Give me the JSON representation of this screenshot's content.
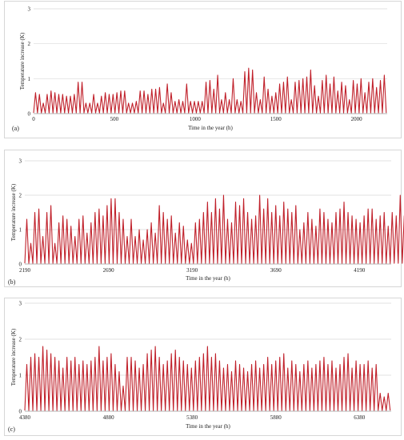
{
  "chart_data": [
    {
      "type": "line",
      "panel_label": "(a)",
      "xlabel": "Time in the year (h)",
      "ylabel": "Temperature increase (K)",
      "xlim": [
        0,
        2190
      ],
      "ylim": [
        0,
        3
      ],
      "x_ticks": [
        0,
        500,
        1000,
        1500,
        2000
      ],
      "y_ticks": [
        0,
        1,
        2,
        3
      ],
      "grid": true,
      "series": [
        {
          "color": "#c0202a",
          "x_start": 0,
          "x_step": 24,
          "daily_peaks": [
            0.6,
            0.55,
            0.3,
            0.55,
            0.65,
            0.6,
            0.55,
            0.55,
            0.5,
            0.5,
            0.55,
            0.9,
            0.9,
            0.3,
            0.3,
            0.55,
            0.3,
            0.5,
            0.6,
            0.55,
            0.55,
            0.6,
            0.65,
            0.65,
            0.3,
            0.3,
            0.35,
            0.65,
            0.65,
            0.55,
            0.7,
            0.7,
            0.75,
            0.3,
            0.85,
            0.6,
            0.35,
            0.4,
            0.35,
            0.85,
            0.35,
            0.35,
            0.35,
            0.35,
            0.9,
            0.95,
            0.7,
            1.1,
            0.4,
            0.6,
            0.4,
            1.0,
            0.4,
            0.35,
            1.2,
            1.3,
            1.25,
            0.6,
            0.4,
            1.05,
            0.7,
            0.5,
            0.6,
            0.85,
            0.9,
            1.05,
            0.4,
            0.9,
            0.95,
            1.0,
            1.05,
            1.25,
            0.8,
            0.5,
            0.95,
            1.1,
            0.85,
            1.05,
            0.65,
            0.9,
            0.8,
            0.4,
            0.95,
            0.85,
            1.0,
            0.6,
            0.9,
            1.0,
            0.75,
            0.95,
            1.1
          ]
        }
      ]
    },
    {
      "type": "line",
      "panel_label": "(b)",
      "xlabel": "Time in the year (h)",
      "ylabel": "Temperature increase (K)",
      "xlim": [
        2190,
        4380
      ],
      "ylim": [
        0,
        3
      ],
      "x_ticks": [
        2190,
        2690,
        3190,
        3690,
        4190
      ],
      "y_ticks": [
        0,
        1,
        2,
        3
      ],
      "grid": true,
      "series": [
        {
          "color": "#c0202a",
          "x_start": 2190,
          "x_step": 24,
          "daily_peaks": [
            1.3,
            0.6,
            1.5,
            1.6,
            0.8,
            1.5,
            1.7,
            0.6,
            1.2,
            1.4,
            1.3,
            1.1,
            0.8,
            1.3,
            1.4,
            0.9,
            1.2,
            1.5,
            1.6,
            1.4,
            1.7,
            1.9,
            1.9,
            1.5,
            1.3,
            0.8,
            1.3,
            0.8,
            1.0,
            0.7,
            1.0,
            1.2,
            0.9,
            1.7,
            1.5,
            1.3,
            1.4,
            0.9,
            1.2,
            1.1,
            0.7,
            0.6,
            1.2,
            1.3,
            1.5,
            1.8,
            1.5,
            1.9,
            1.6,
            2.0,
            1.3,
            1.2,
            1.8,
            1.7,
            1.9,
            1.5,
            1.3,
            1.4,
            2.0,
            1.6,
            1.9,
            1.5,
            1.7,
            1.4,
            1.8,
            1.6,
            1.5,
            1.7,
            1.0,
            1.2,
            1.5,
            1.3,
            1.1,
            1.6,
            1.5,
            1.3,
            1.2,
            1.5,
            1.6,
            1.8,
            1.5,
            1.4,
            1.3,
            1.2,
            1.4,
            1.6,
            1.6,
            1.3,
            1.4,
            1.5,
            1.1,
            1.5,
            1.4,
            2.0,
            1.4
          ]
        }
      ]
    },
    {
      "type": "line",
      "panel_label": "(c)",
      "xlabel": "Time in the year (h)",
      "ylabel": "Temperature increase (K)",
      "xlim": [
        4380,
        6570
      ],
      "ylim": [
        0,
        3
      ],
      "x_ticks": [
        4380,
        4880,
        5380,
        5880,
        6380
      ],
      "y_ticks": [
        0,
        1,
        2,
        3
      ],
      "grid": true,
      "series": [
        {
          "color": "#c0202a",
          "x_start": 4380,
          "x_step": 24,
          "daily_peaks": [
            1.3,
            1.5,
            1.6,
            1.5,
            1.8,
            1.7,
            1.6,
            1.5,
            1.4,
            1.2,
            1.5,
            1.4,
            1.5,
            1.3,
            1.4,
            1.3,
            1.4,
            1.5,
            1.8,
            1.4,
            1.5,
            1.6,
            1.3,
            1.1,
            0.7,
            1.5,
            1.5,
            1.4,
            1.2,
            1.3,
            1.6,
            1.7,
            1.8,
            1.5,
            1.3,
            1.4,
            1.6,
            1.7,
            1.5,
            1.4,
            1.3,
            1.2,
            1.4,
            1.5,
            1.6,
            1.8,
            1.5,
            1.6,
            1.4,
            1.2,
            1.3,
            1.1,
            1.4,
            1.3,
            1.2,
            1.1,
            1.3,
            1.4,
            1.2,
            1.3,
            1.5,
            1.3,
            1.4,
            1.5,
            1.6,
            1.2,
            1.4,
            1.3,
            1.1,
            1.3,
            1.4,
            1.2,
            1.3,
            1.4,
            1.5,
            1.3,
            1.4,
            1.2,
            1.3,
            1.5,
            1.6,
            1.2,
            1.4,
            1.3,
            1.3,
            1.4,
            1.2,
            1.3,
            0.5,
            0.4,
            0.5
          ]
        }
      ]
    }
  ]
}
